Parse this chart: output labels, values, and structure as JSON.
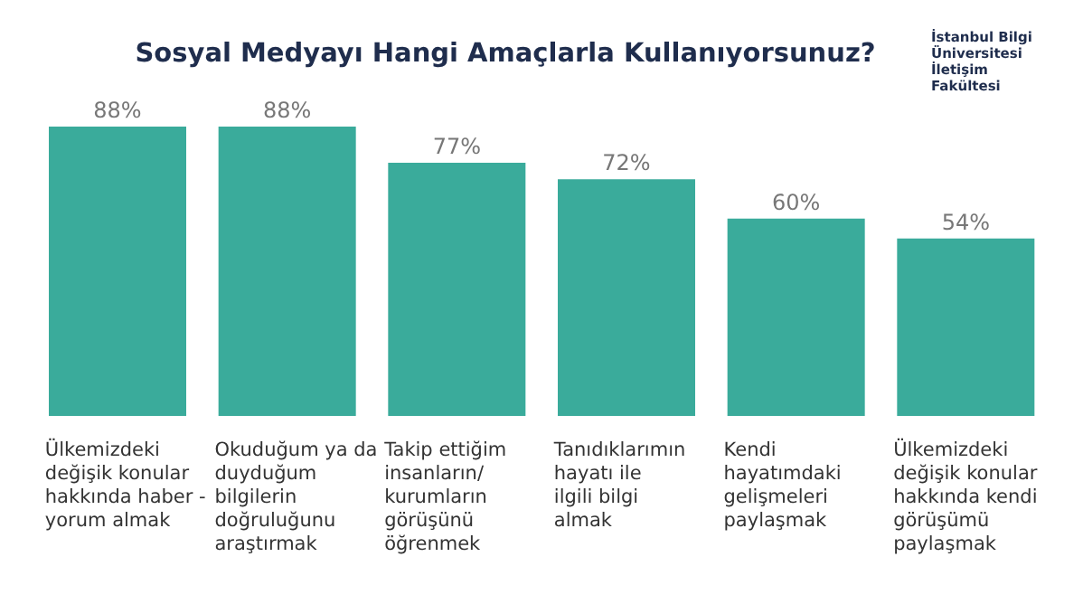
{
  "chart_data": {
    "type": "bar",
    "title": "Sosyal Medyayı Hangi Amaçlarla Kullanıyorsunuz?",
    "categories": [
      "Ülkemizdeki değişik konular hakkında haber - yorum almak",
      "Okuduğum ya da duyduğum bilgilerin doğruluğunu araştırmak",
      "Takip ettiğim insanların/ kurumların görüşünü öğrenmek",
      "Tanıdıklarımın hayatı ile ilgili bilgi almak",
      "Kendi hayatımdaki gelişmeleri paylaşmak",
      "Ülkemizdeki değişik konular hakkında kendi görüşümü paylaşmak"
    ],
    "values": [
      88,
      88,
      77,
      72,
      60,
      54
    ],
    "value_labels": [
      "88%",
      "88%",
      "77%",
      "72%",
      "60%",
      "54%"
    ],
    "color": "#3aab9b",
    "grid": false,
    "annotations": [
      "İstanbul Bilgi Üniversitesi İletişim Fakültesi"
    ]
  }
}
